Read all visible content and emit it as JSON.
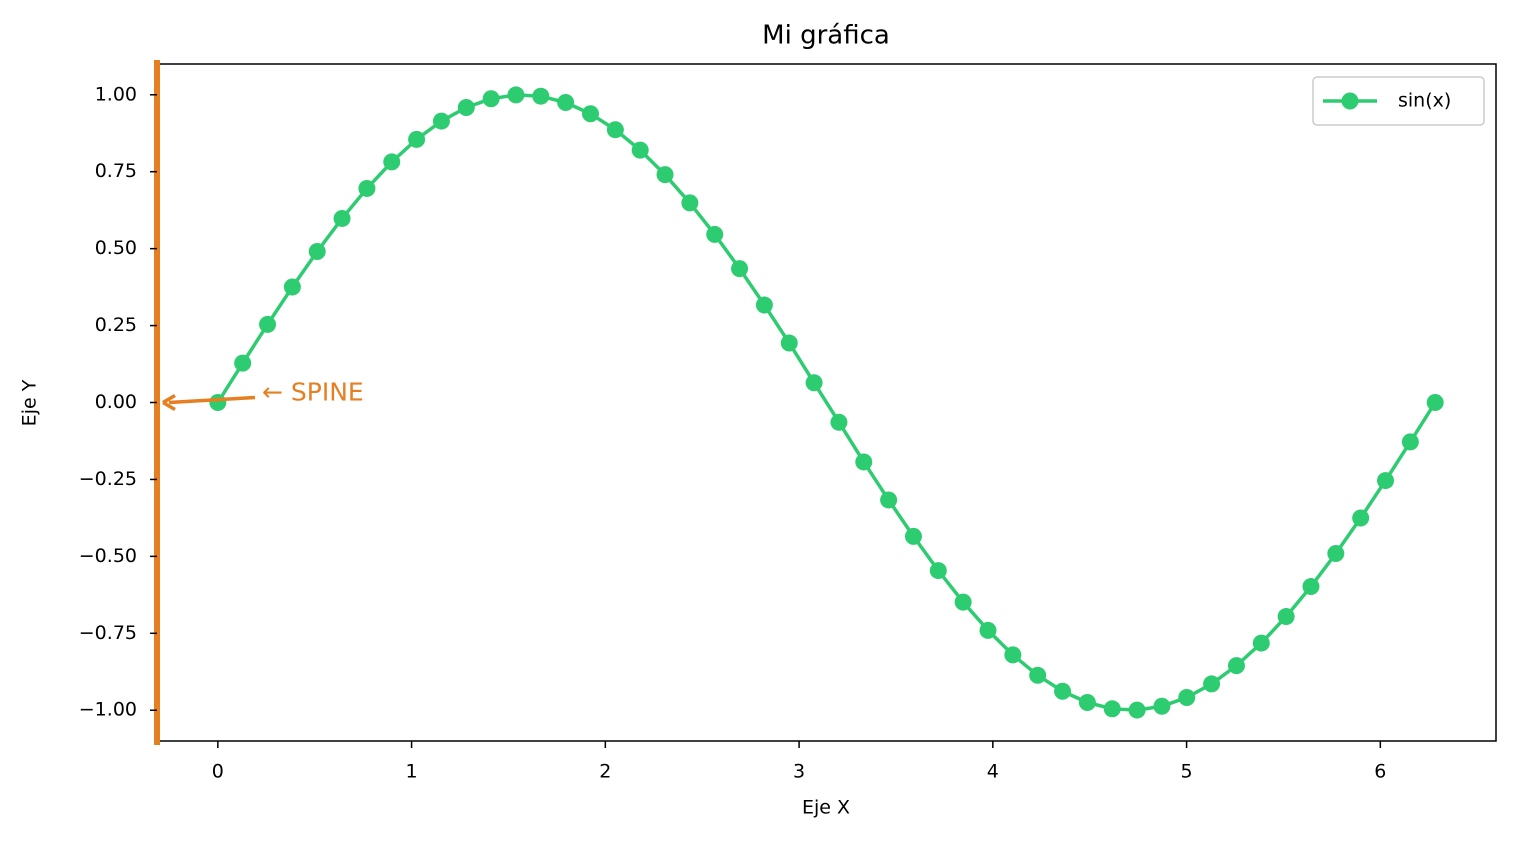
{
  "chart_data": {
    "type": "line",
    "title": "Mi gráfica",
    "xlabel": "Eje X",
    "ylabel": "Eje Y",
    "annotation": "← SPINE",
    "annotation_color": "#e67e22",
    "left_spine_color": "#e67e22",
    "legend": "upper right",
    "x": [
      0,
      0.1282,
      0.2565,
      0.3847,
      0.5129,
      0.6411,
      0.7694,
      0.8976,
      1.0258,
      1.1541,
      1.2823,
      1.4105,
      1.5387,
      1.667,
      1.7952,
      1.9234,
      2.0517,
      2.1799,
      2.3081,
      2.4363,
      2.5646,
      2.6928,
      2.821,
      2.9493,
      3.0775,
      3.2057,
      3.3339,
      3.4622,
      3.5904,
      3.7186,
      3.8468,
      3.9751,
      4.1033,
      4.2315,
      4.3598,
      4.488,
      4.6162,
      4.7444,
      4.8727,
      5.0009,
      5.1291,
      5.2574,
      5.3856,
      5.5138,
      5.642,
      5.7703,
      5.8985,
      6.0267,
      6.155,
      6.2832
    ],
    "series": [
      {
        "name": "sin(x)",
        "color": "#2ecc71",
        "values": [
          0,
          0.1279,
          0.2537,
          0.3753,
          0.4907,
          0.5981,
          0.6956,
          0.7818,
          0.8551,
          0.9145,
          0.9587,
          0.9872,
          0.9995,
          0.9954,
          0.9749,
          0.9383,
          0.8865,
          0.8201,
          0.7404,
          0.6486,
          0.5462,
          0.435,
          0.3167,
          0.1932,
          0.0641,
          -0.0641,
          -0.1932,
          -0.3167,
          -0.435,
          -0.5462,
          -0.6486,
          -0.7404,
          -0.8201,
          -0.8865,
          -0.9383,
          -0.9749,
          -0.9954,
          -0.9995,
          -0.9872,
          -0.9587,
          -0.9145,
          -0.8551,
          -0.7818,
          -0.6956,
          -0.5981,
          -0.4907,
          -0.3753,
          -0.2537,
          -0.1279,
          0
        ]
      }
    ],
    "xlim": [
      -0.314,
      6.597
    ],
    "ylim": [
      -1.1,
      1.1
    ],
    "xticks": [
      0,
      1,
      2,
      3,
      4,
      5,
      6
    ],
    "yticks": [
      {
        "value": -1,
        "label": "−1.00"
      },
      {
        "value": -0.75,
        "label": "−0.75"
      },
      {
        "value": -0.5,
        "label": "−0.50"
      },
      {
        "value": -0.25,
        "label": "−0.25"
      },
      {
        "value": 0,
        "label": "0.00"
      },
      {
        "value": 0.25,
        "label": "0.25"
      },
      {
        "value": 0.5,
        "label": "0.50"
      },
      {
        "value": 0.75,
        "label": "0.75"
      },
      {
        "value": 1,
        "label": "1.00"
      }
    ]
  }
}
